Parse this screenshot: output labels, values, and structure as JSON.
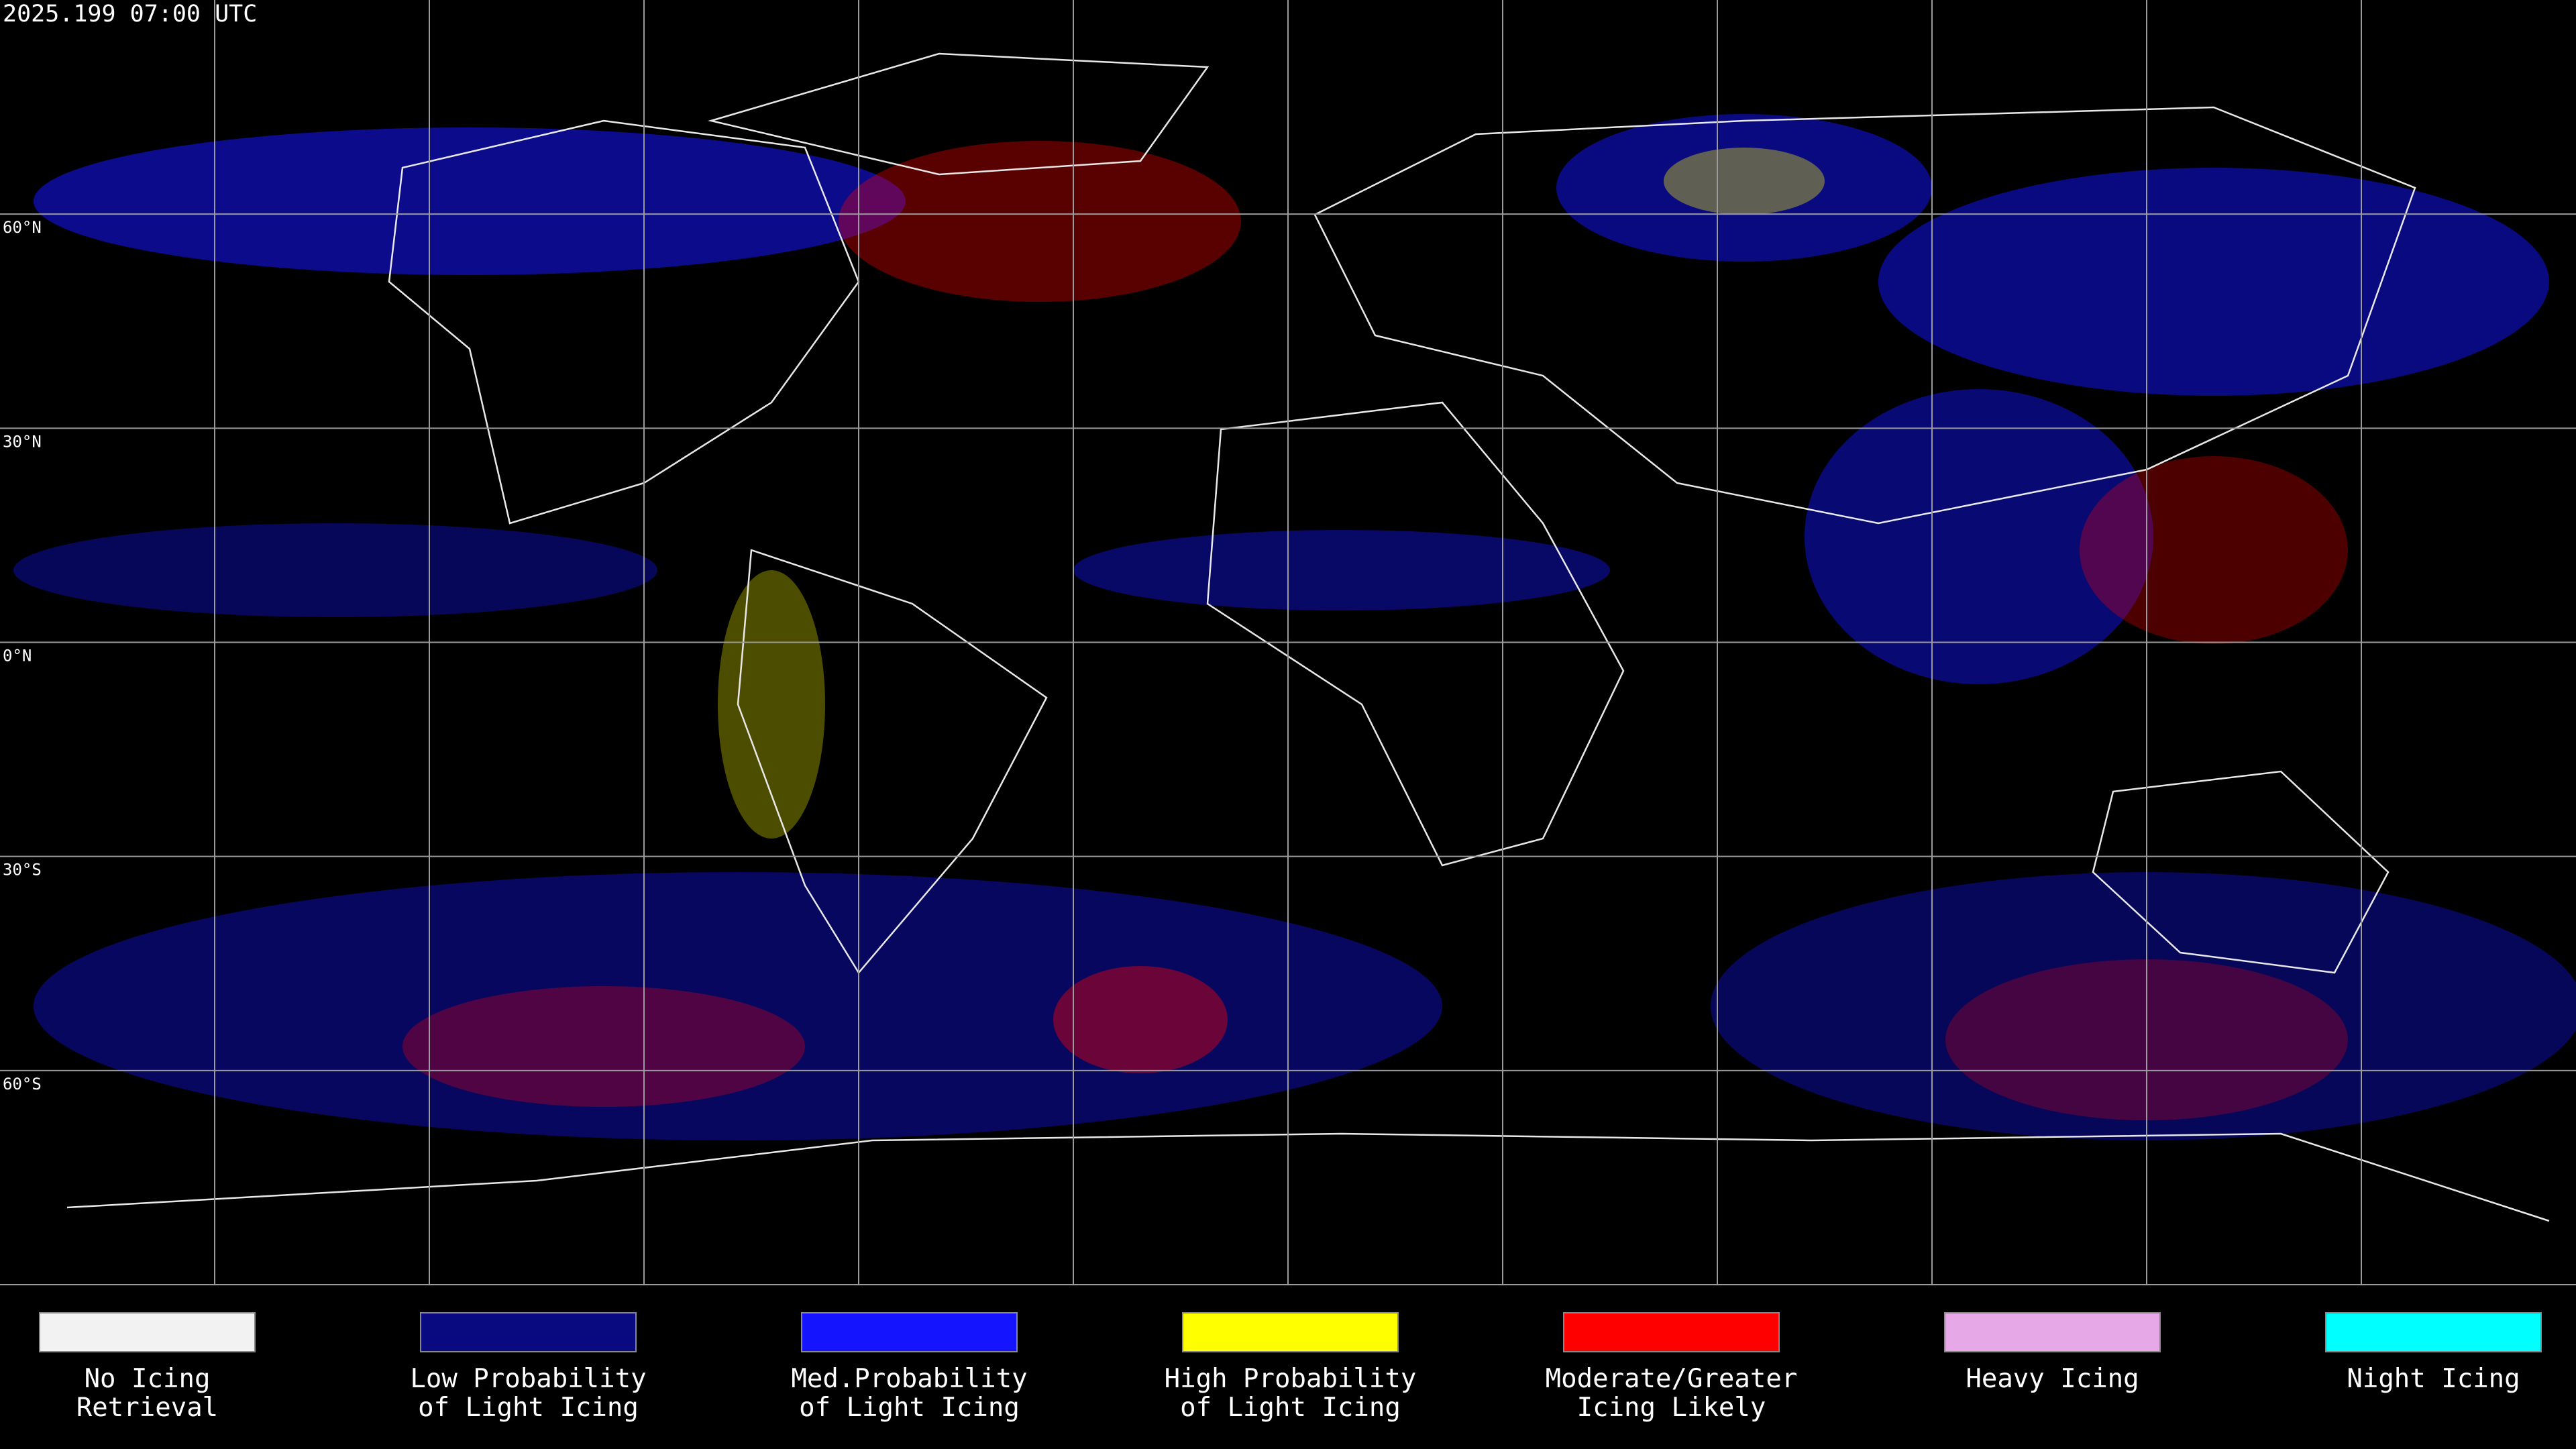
{
  "header": {
    "timestamp": "2025.199 07:00 UTC"
  },
  "latitude_labels": [
    "60°N",
    "30°N",
    "0°N",
    "30°S",
    "60°S"
  ],
  "legend": [
    {
      "color": "#f2f2f2",
      "lines": [
        "No Icing",
        "Retrieval"
      ]
    },
    {
      "color": "#0a0a80",
      "lines": [
        "Low Probability",
        "of Light Icing"
      ]
    },
    {
      "color": "#1414ff",
      "lines": [
        "Med.Probability",
        "of Light Icing"
      ]
    },
    {
      "color": "#ffff00",
      "lines": [
        "High Probability",
        "of Light Icing"
      ]
    },
    {
      "color": "#ff0000",
      "lines": [
        "Moderate/Greater",
        "Icing Likely"
      ]
    },
    {
      "color": "#e6a8e6",
      "lines": [
        "Heavy Icing"
      ]
    },
    {
      "color": "#00ffff",
      "lines": [
        "Night Icing"
      ]
    }
  ]
}
